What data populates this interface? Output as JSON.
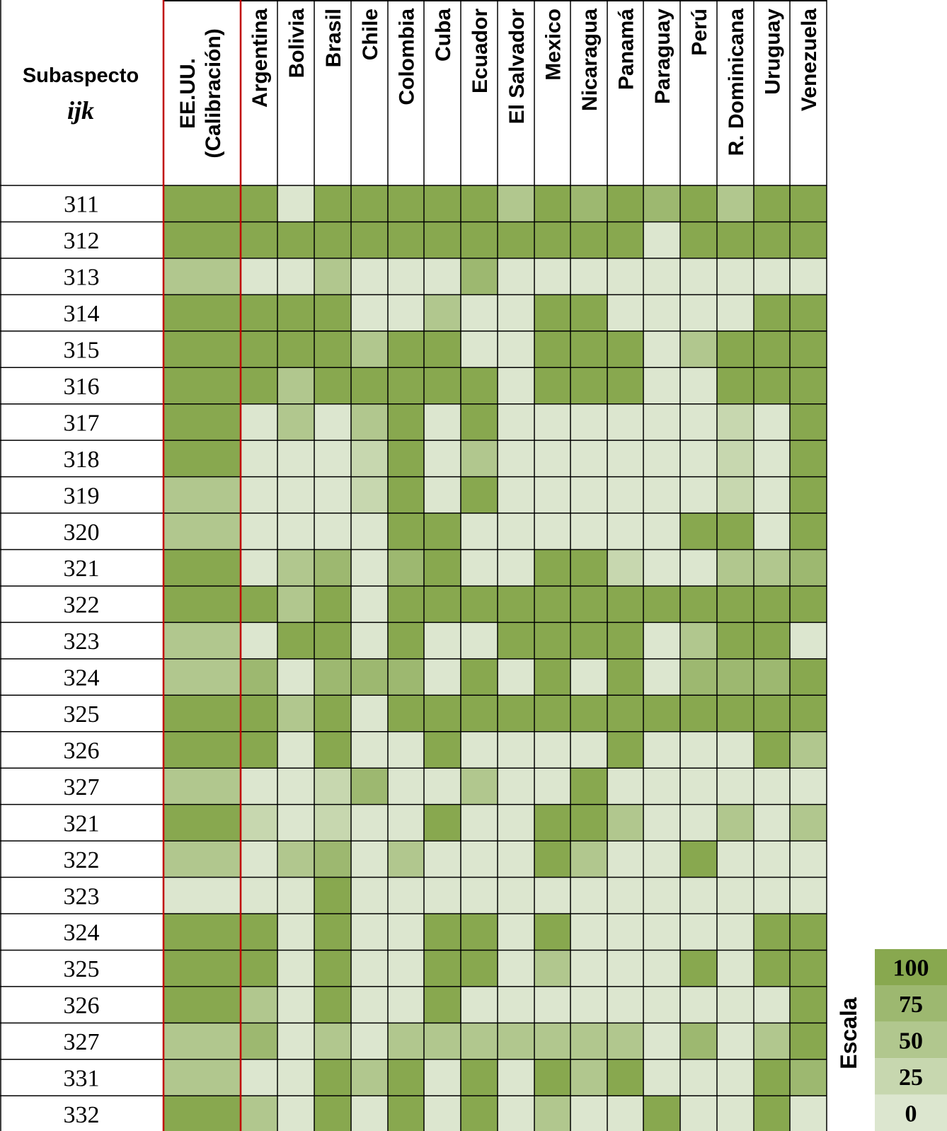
{
  "chart_data": {
    "type": "heatmap",
    "corner_header": {
      "line1": "Subaspecto",
      "line2": "ijk"
    },
    "calibration_column": {
      "line1": "EE.UU.",
      "line2": "(Calibración)"
    },
    "columns": [
      "EE.UU. (Calibración)",
      "Argentina",
      "Bolivia",
      "Brasil",
      "Chile",
      "Colombia",
      "Cuba",
      "Ecuador",
      "El Salvador",
      "Mexico",
      "Nicaragua",
      "Panamá",
      "Paraguay",
      "Perú",
      "R. Dominicana",
      "Uruguay",
      "Venezuela"
    ],
    "rows": [
      "311",
      "312",
      "313",
      "314",
      "315",
      "316",
      "317",
      "318",
      "319",
      "320",
      "321",
      "322",
      "323",
      "324",
      "325",
      "326",
      "327",
      "321",
      "322",
      "323",
      "324",
      "325",
      "326",
      "327",
      "331",
      "332"
    ],
    "values": [
      [
        100,
        100,
        0,
        100,
        100,
        100,
        100,
        100,
        50,
        100,
        75,
        100,
        75,
        100,
        50,
        100,
        100
      ],
      [
        100,
        100,
        100,
        100,
        100,
        100,
        100,
        100,
        100,
        100,
        100,
        100,
        0,
        100,
        100,
        100,
        100
      ],
      [
        50,
        0,
        0,
        50,
        0,
        0,
        0,
        75,
        0,
        0,
        0,
        0,
        0,
        0,
        0,
        0,
        0
      ],
      [
        100,
        100,
        100,
        100,
        0,
        0,
        50,
        0,
        0,
        100,
        100,
        0,
        0,
        0,
        0,
        100,
        100
      ],
      [
        100,
        100,
        100,
        100,
        50,
        100,
        100,
        0,
        0,
        100,
        100,
        100,
        0,
        50,
        100,
        100,
        100
      ],
      [
        100,
        100,
        50,
        100,
        100,
        100,
        100,
        100,
        0,
        100,
        100,
        100,
        0,
        0,
        100,
        100,
        100
      ],
      [
        100,
        0,
        50,
        0,
        50,
        100,
        0,
        100,
        0,
        0,
        0,
        0,
        0,
        0,
        25,
        0,
        100
      ],
      [
        100,
        0,
        0,
        0,
        25,
        100,
        0,
        50,
        0,
        0,
        0,
        0,
        0,
        0,
        25,
        0,
        100
      ],
      [
        50,
        0,
        0,
        0,
        25,
        100,
        0,
        100,
        0,
        0,
        0,
        0,
        0,
        0,
        25,
        0,
        100
      ],
      [
        50,
        0,
        0,
        0,
        0,
        100,
        100,
        0,
        0,
        0,
        0,
        0,
        0,
        100,
        100,
        0,
        100
      ],
      [
        100,
        0,
        50,
        75,
        0,
        75,
        100,
        0,
        0,
        100,
        100,
        25,
        0,
        0,
        50,
        50,
        75
      ],
      [
        100,
        100,
        50,
        100,
        0,
        100,
        100,
        100,
        100,
        100,
        100,
        100,
        100,
        100,
        100,
        100,
        100
      ],
      [
        50,
        0,
        100,
        100,
        0,
        100,
        0,
        0,
        100,
        100,
        100,
        100,
        0,
        50,
        100,
        100,
        0
      ],
      [
        50,
        75,
        0,
        75,
        75,
        75,
        0,
        100,
        0,
        100,
        0,
        100,
        0,
        75,
        75,
        75,
        100
      ],
      [
        100,
        100,
        50,
        100,
        0,
        100,
        100,
        100,
        100,
        100,
        100,
        100,
        100,
        100,
        100,
        100,
        100
      ],
      [
        100,
        100,
        0,
        100,
        0,
        0,
        100,
        0,
        0,
        0,
        0,
        100,
        0,
        0,
        0,
        100,
        50
      ],
      [
        50,
        0,
        0,
        25,
        75,
        0,
        0,
        50,
        0,
        0,
        100,
        0,
        0,
        0,
        0,
        0,
        0
      ],
      [
        100,
        25,
        0,
        25,
        0,
        0,
        100,
        0,
        0,
        100,
        100,
        50,
        0,
        0,
        50,
        0,
        50
      ],
      [
        50,
        0,
        50,
        75,
        0,
        50,
        0,
        0,
        0,
        100,
        50,
        0,
        0,
        100,
        0,
        0,
        0
      ],
      [
        0,
        0,
        0,
        100,
        0,
        0,
        0,
        0,
        0,
        0,
        0,
        0,
        0,
        0,
        0,
        0,
        0
      ],
      [
        100,
        100,
        0,
        100,
        0,
        0,
        100,
        100,
        0,
        100,
        0,
        0,
        0,
        0,
        0,
        100,
        100
      ],
      [
        100,
        100,
        0,
        100,
        0,
        0,
        100,
        100,
        0,
        50,
        0,
        0,
        0,
        100,
        0,
        100,
        100
      ],
      [
        100,
        50,
        0,
        100,
        0,
        0,
        100,
        0,
        0,
        0,
        0,
        0,
        0,
        0,
        0,
        0,
        100
      ],
      [
        50,
        75,
        0,
        50,
        0,
        50,
        50,
        50,
        50,
        50,
        50,
        50,
        0,
        75,
        0,
        50,
        100
      ],
      [
        50,
        0,
        0,
        100,
        50,
        100,
        0,
        100,
        0,
        100,
        50,
        100,
        0,
        0,
        0,
        100,
        75
      ],
      [
        100,
        50,
        0,
        100,
        0,
        100,
        0,
        100,
        0,
        50,
        0,
        0,
        100,
        0,
        0,
        100,
        0
      ]
    ],
    "scale": {
      "title": "Escala",
      "levels": [
        {
          "label": "100",
          "value": 100,
          "color": "#88A84F"
        },
        {
          "label": "75",
          "value": 75,
          "color": "#9DB870"
        },
        {
          "label": "50",
          "value": 50,
          "color": "#B1C78E"
        },
        {
          "label": "25",
          "value": 25,
          "color": "#C7D7AF"
        },
        {
          "label": "0",
          "value": 0,
          "color": "#DCE6CF"
        }
      ]
    },
    "grid_color": "#000000",
    "calibration_border_color": "#C00000"
  }
}
